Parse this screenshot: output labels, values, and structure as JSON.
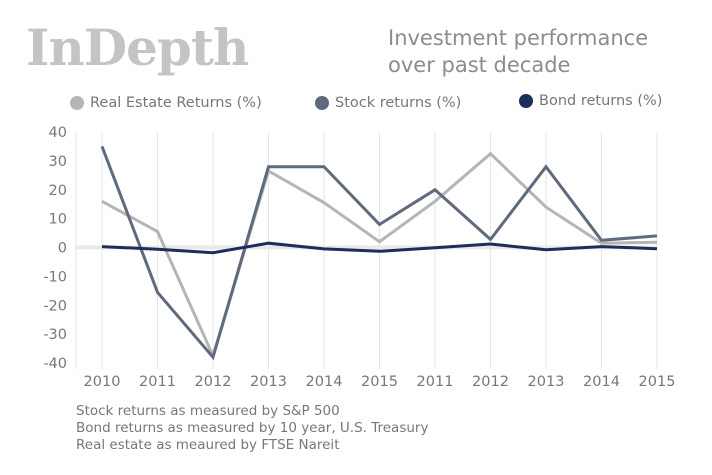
{
  "brand": "InDepth",
  "title_lines": [
    "Investment performance",
    "over past decade"
  ],
  "legend": [
    {
      "label": "Real Estate Returns (%)",
      "color": "#b5b5b5"
    },
    {
      "label": "Stock returns (%)",
      "color": "#5f6b7d"
    },
    {
      "label": "Bond returns (%)",
      "color": "#1f2d5c"
    }
  ],
  "notes": [
    "Stock returns as measured by S&P 500",
    "Bond returns as measured by 10 year, U.S. Treasury",
    "Real estate as meaured  by FTSE Nareit"
  ],
  "chart_data": {
    "type": "line",
    "categories": [
      "2010",
      "2011",
      "2012",
      "2013",
      "2014",
      "2015",
      "2011",
      "2012",
      "2013",
      "2014",
      "2015"
    ],
    "ylim": [
      -40,
      40
    ],
    "yticks": [
      40,
      30,
      20,
      10,
      0,
      -10,
      -20,
      -30,
      -40
    ],
    "grid": "vertical",
    "legend_position": "top",
    "series": [
      {
        "name": "Real Estate Returns (%)",
        "color": "#b5b5b5",
        "values": [
          16,
          5.5,
          -37.5,
          26.5,
          15.5,
          2,
          16,
          32.5,
          14,
          1.5,
          1.8
        ]
      },
      {
        "name": "Stock returns (%)",
        "color": "#5f6b7d",
        "values": [
          35,
          -15.5,
          -38,
          28,
          28,
          8,
          20,
          2.8,
          28,
          2.5,
          4
        ]
      },
      {
        "name": "Bond returns (%)",
        "color": "#1f2d5c",
        "values": [
          0.3,
          -0.6,
          -1.8,
          1.5,
          -0.5,
          -1.3,
          -0.1,
          1.2,
          -0.8,
          0.3,
          -0.4
        ]
      }
    ]
  }
}
